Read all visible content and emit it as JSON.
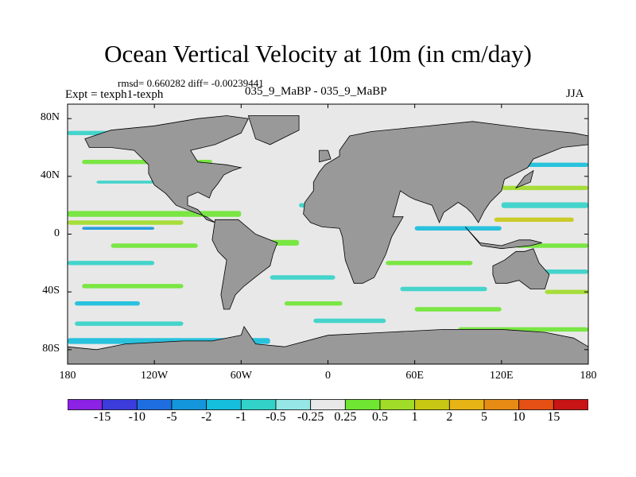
{
  "title": "Ocean Vertical Velocity at 10m (in cm/day)",
  "stats": "rmsd= 0.660282 diff= -0.00239441",
  "left_label": "Expt = texph1-texph",
  "center_label": "035_9_MaBP - 035_9_MaBP",
  "right_label": "JJA",
  "map": {
    "lon_range": [
      -180,
      180
    ],
    "lat_range": [
      -90,
      90
    ],
    "land_color": "#999999",
    "ocean_background": "#e8e8e8",
    "lat_ticks": [
      {
        "value": 80,
        "label": "80N"
      },
      {
        "value": 40,
        "label": "40N"
      },
      {
        "value": 0,
        "label": "0"
      },
      {
        "value": -40,
        "label": "40S"
      },
      {
        "value": -80,
        "label": "80S"
      }
    ],
    "lon_ticks": [
      {
        "value": -180,
        "label": "180"
      },
      {
        "value": -120,
        "label": "120W"
      },
      {
        "value": -60,
        "label": "60W"
      },
      {
        "value": 0,
        "label": "0"
      },
      {
        "value": 60,
        "label": "60E"
      },
      {
        "value": 120,
        "label": "120E"
      },
      {
        "value": 180,
        "label": "180"
      }
    ]
  },
  "colorbar": {
    "colors": [
      "#8b22e4",
      "#3c3cdc",
      "#1e6ee0",
      "#1496dc",
      "#14bedc",
      "#32d2c8",
      "#96e6e6",
      "#e8e8e8",
      "#6ee632",
      "#a0dc28",
      "#c8c814",
      "#e6b414",
      "#e68c14",
      "#e65014",
      "#c81414"
    ],
    "labels": [
      "-15",
      "-10",
      "-5",
      "-2",
      "-1",
      "-0.5",
      "-0.25",
      "0.25",
      "0.5",
      "1",
      "2",
      "5",
      "10",
      "15"
    ]
  }
}
